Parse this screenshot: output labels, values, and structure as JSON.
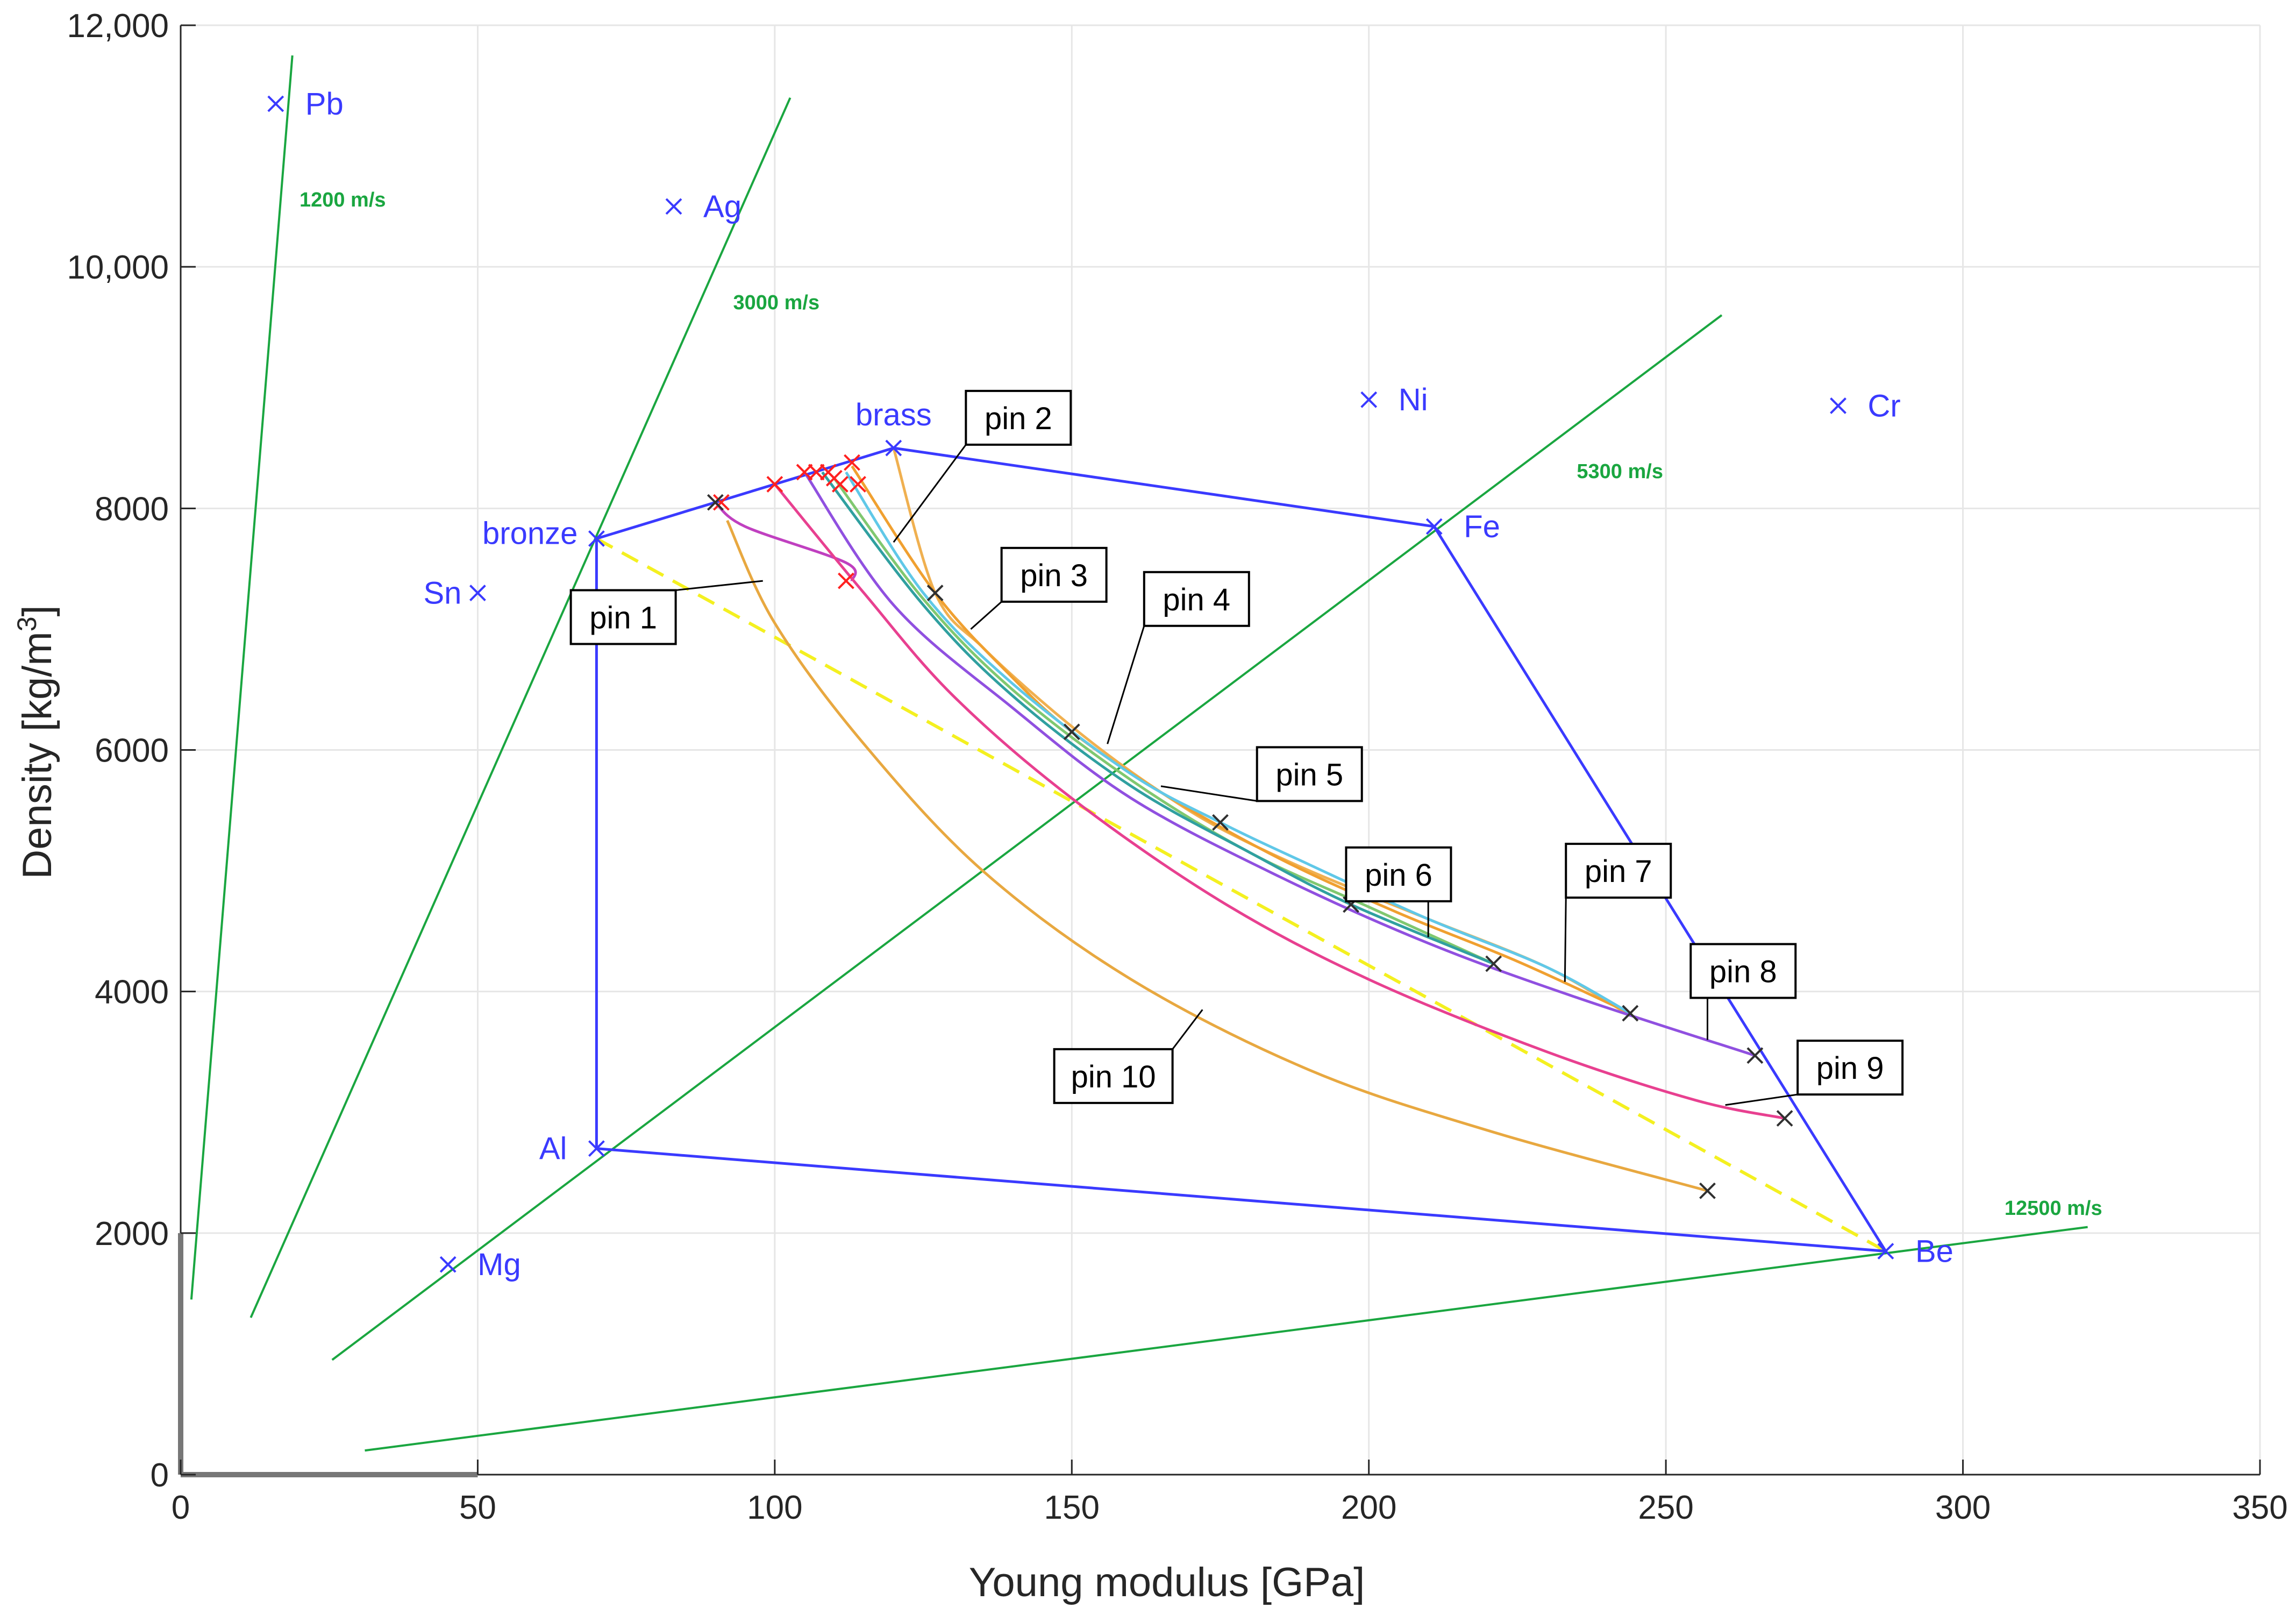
{
  "chart_data": {
    "type": "scatter",
    "xlabel": "Young modulus [GPa]",
    "ylabel": "Density [kg/m",
    "ylabel_sup": "3",
    "ylabel_suffix": "]",
    "xlim": [
      0,
      350
    ],
    "ylim": [
      0,
      12000
    ],
    "xticks": [
      0,
      50,
      100,
      150,
      200,
      250,
      300,
      350
    ],
    "xtick_labels": [
      "0",
      "50",
      "100",
      "150",
      "200",
      "250",
      "300",
      "350"
    ],
    "yticks": [
      0,
      2000,
      4000,
      6000,
      8000,
      10000,
      12000
    ],
    "ytick_labels": [
      "0",
      "2000",
      "4000",
      "6000",
      "8000",
      "10,000",
      "12,000"
    ],
    "grid": true,
    "colors": {
      "material": "#3a3aff",
      "speed": "#1aa640",
      "grid": "#e6e6e6",
      "axis": "#262626",
      "marker_red": "#ff2020",
      "marker_black": "#303030",
      "dashed": "#f4f020"
    },
    "materials": [
      {
        "name": "Pb",
        "x": 16,
        "y": 11350
      },
      {
        "name": "Ag",
        "x": 83,
        "y": 10500
      },
      {
        "name": "Ni",
        "x": 200,
        "y": 8900
      },
      {
        "name": "Cr",
        "x": 279,
        "y": 8850
      },
      {
        "name": "brass",
        "x": 120,
        "y": 8500
      },
      {
        "name": "bronze",
        "x": 70,
        "y": 7750
      },
      {
        "name": "Sn",
        "x": 50,
        "y": 7300
      },
      {
        "name": "Fe",
        "x": 211,
        "y": 7850
      },
      {
        "name": "Al",
        "x": 70,
        "y": 2700
      },
      {
        "name": "Mg",
        "x": 45,
        "y": 1740
      },
      {
        "name": "Be",
        "x": 287,
        "y": 1850
      }
    ],
    "hull": [
      [
        70,
        2700
      ],
      [
        70,
        7750
      ],
      [
        90,
        8050
      ],
      [
        120,
        8500
      ],
      [
        211,
        7850
      ],
      [
        287,
        1850
      ],
      [
        70,
        2700
      ]
    ],
    "sound_speed_lines": [
      {
        "label": "1200 m/s",
        "x": [
          1.8,
          18.8
        ],
        "y": [
          1450,
          11750
        ],
        "label_at": [
          20,
          10500
        ]
      },
      {
        "label": "3000 m/s",
        "x": [
          11.8,
          102.6
        ],
        "y": [
          1300,
          11400
        ],
        "label_at": [
          93,
          9650
        ]
      },
      {
        "label": "5300 m/s",
        "x": [
          25.5,
          259.4
        ],
        "y": [
          950,
          9600
        ],
        "label_at": [
          235,
          8250
        ]
      },
      {
        "label": "12500 m/s",
        "x": [
          31,
          321
        ],
        "y": [
          200,
          2050
        ],
        "label_at": [
          307,
          2150
        ]
      }
    ],
    "dashed_line": {
      "x": [
        70,
        287
      ],
      "y": [
        7750,
        1850
      ]
    },
    "series": [
      {
        "color": "#f0b050",
        "x": [
          120,
          127,
          135,
          145,
          155,
          165,
          175,
          190,
          210,
          230,
          244
        ],
        "y": [
          8500,
          7300,
          6850,
          6400,
          6000,
          5650,
          5350,
          5000,
          4600,
          4200,
          3800
        ]
      },
      {
        "color": "#f0a030",
        "x": [
          113,
          127,
          140,
          150,
          165,
          185,
          205,
          225,
          244
        ],
        "y": [
          8350,
          7300,
          6600,
          6150,
          5650,
          5100,
          4650,
          4250,
          3820
        ]
      },
      {
        "color": "#60c8e8",
        "x": [
          112,
          125,
          140,
          160,
          175,
          190,
          210,
          230,
          244
        ],
        "y": [
          8300,
          7300,
          6550,
          5800,
          5400,
          5050,
          4600,
          4200,
          3820
        ]
      },
      {
        "color": "#80c870",
        "x": [
          110,
          125,
          140,
          160,
          180,
          200,
          221
        ],
        "y": [
          8250,
          7250,
          6500,
          5750,
          5150,
          4700,
          4230
        ]
      },
      {
        "color": "#30a0a0",
        "x": [
          108,
          125,
          140,
          160,
          180,
          197,
          221
        ],
        "y": [
          8300,
          7200,
          6450,
          5700,
          5150,
          4720,
          4230
        ]
      },
      {
        "color": "#c040c0",
        "x": [
          90,
          95,
          112,
          113
        ],
        "y": [
          8050,
          7850,
          7550,
          7400
        ]
      },
      {
        "color": "#9050e0",
        "x": [
          105,
          120,
          140,
          160,
          185,
          210,
          235,
          265
        ],
        "y": [
          8300,
          7200,
          6350,
          5600,
          4950,
          4400,
          3950,
          3470
        ]
      },
      {
        "color": "#e84090",
        "x": [
          100,
          115,
          130,
          150,
          175,
          200,
          230,
          255,
          270
        ],
        "y": [
          8200,
          7300,
          6450,
          5600,
          4750,
          4100,
          3500,
          3100,
          2950
        ]
      },
      {
        "color": "#e8a840",
        "x": [
          92,
          100,
          115,
          135,
          160,
          190,
          220,
          257
        ],
        "y": [
          7900,
          7050,
          6050,
          5000,
          4100,
          3350,
          2850,
          2350
        ]
      }
    ],
    "red_markers": [
      [
        91,
        8050
      ],
      [
        100,
        8200
      ],
      [
        105,
        8300
      ],
      [
        107,
        8300
      ],
      [
        109,
        8300
      ],
      [
        111,
        8200
      ],
      [
        113,
        8380
      ],
      [
        114,
        8200
      ],
      [
        112,
        7400
      ],
      [
        110,
        8250
      ]
    ],
    "black_markers": [
      [
        90,
        8050
      ],
      [
        127,
        7300
      ],
      [
        150,
        6150
      ],
      [
        175,
        5400
      ],
      [
        197,
        4720
      ],
      [
        221,
        4230
      ],
      [
        244,
        3820
      ],
      [
        265,
        3470
      ],
      [
        270,
        2950
      ],
      [
        257,
        2350
      ]
    ],
    "pins": [
      {
        "label": "pin 1",
        "box": [
          74.5,
          7100
        ],
        "tip": [
          98,
          7400
        ]
      },
      {
        "label": "pin 2",
        "box": [
          141,
          8750
        ],
        "tip": [
          120,
          7720
        ]
      },
      {
        "label": "pin 3",
        "box": [
          147,
          7450
        ],
        "tip": [
          133,
          7000
        ]
      },
      {
        "label": "pin 4",
        "box": [
          171,
          7250
        ],
        "tip": [
          156,
          6050
        ]
      },
      {
        "label": "pin 5",
        "box": [
          190,
          5800
        ],
        "tip": [
          165,
          5700
        ]
      },
      {
        "label": "pin 6",
        "box": [
          205,
          4970
        ],
        "tip": [
          210,
          4450
        ]
      },
      {
        "label": "pin 7",
        "box": [
          242,
          5000
        ],
        "tip": [
          233,
          4080
        ]
      },
      {
        "label": "pin 8",
        "box": [
          263,
          4170
        ],
        "tip": [
          257,
          3600
        ]
      },
      {
        "label": "pin 9",
        "box": [
          281,
          3370
        ],
        "tip": [
          260,
          3060
        ]
      },
      {
        "label": "pin 10",
        "box": [
          157,
          3300
        ],
        "tip": [
          172,
          3850
        ]
      }
    ]
  }
}
